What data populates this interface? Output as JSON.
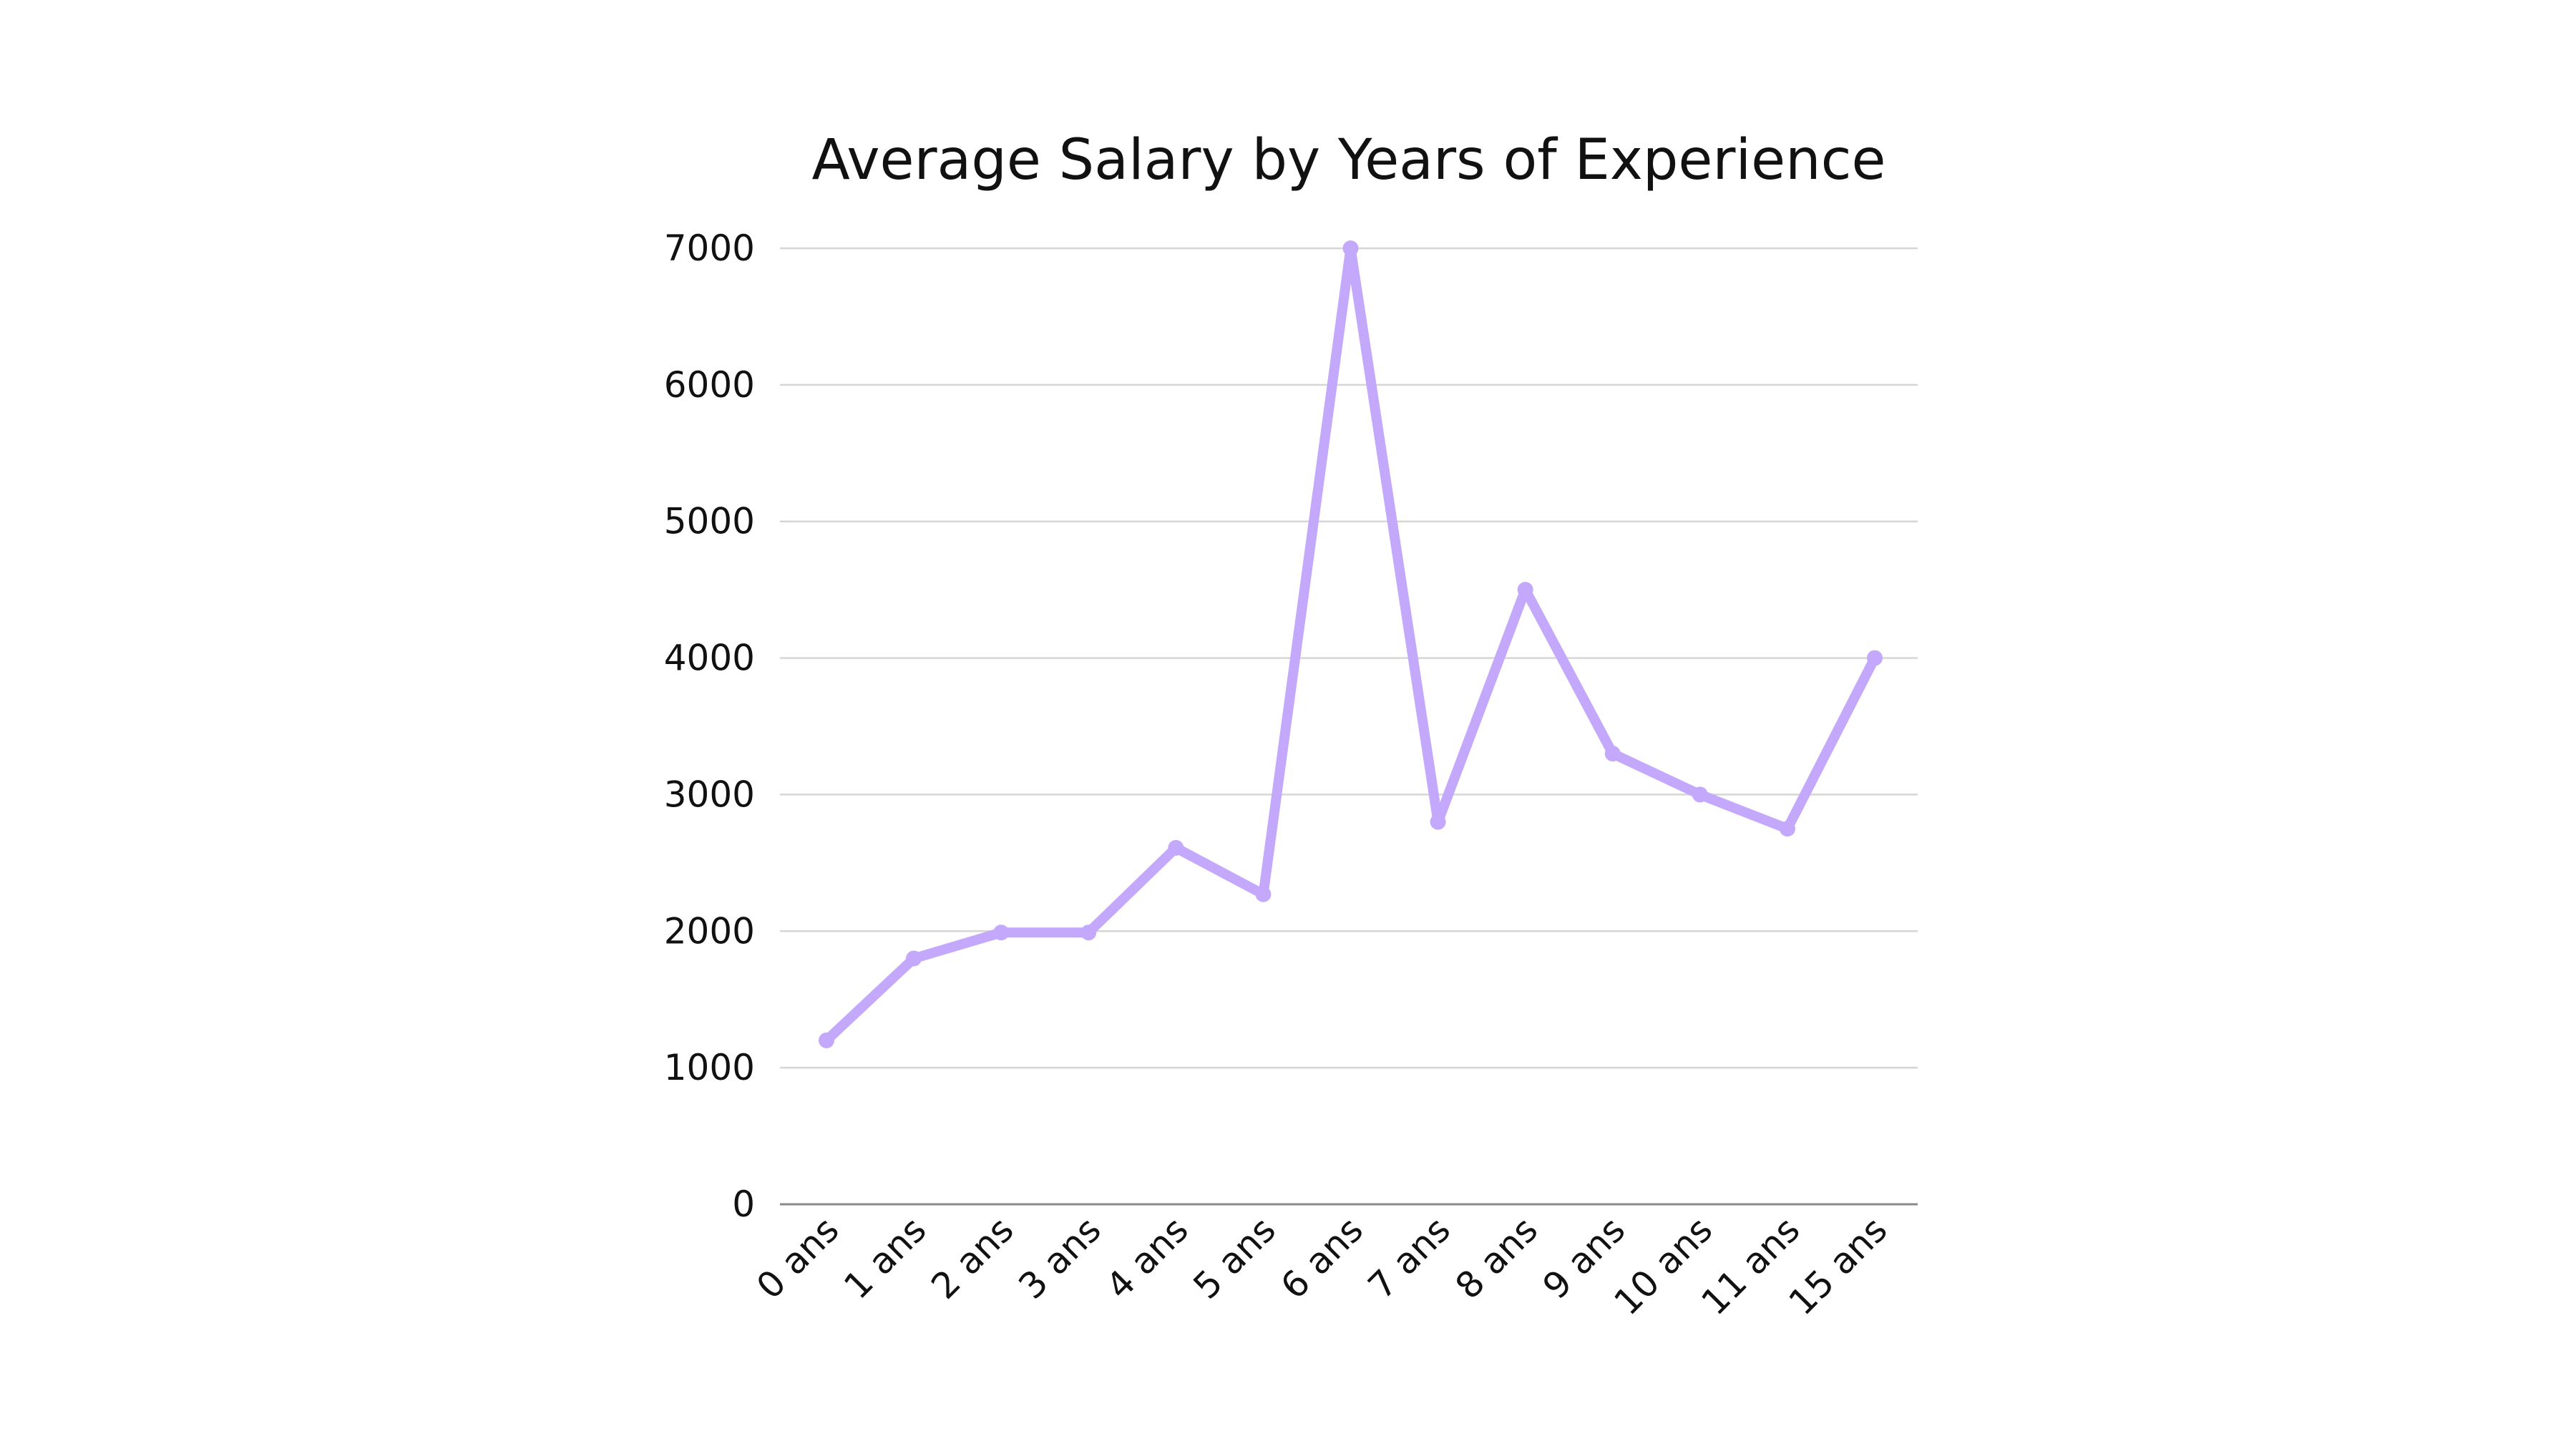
{
  "chart_data": {
    "type": "line",
    "title": "Average Salary by Years of Experience",
    "xlabel": "",
    "ylabel": "",
    "categories": [
      "0 ans",
      "1 ans",
      "2 ans",
      "3 ans",
      "4 ans",
      "5 ans",
      "6 ans",
      "7 ans",
      "8 ans",
      "9 ans",
      "10 ans",
      "11 ans",
      "15 ans"
    ],
    "series": [
      {
        "values": [
          1200,
          1800,
          1990,
          1990,
          2610,
          2270,
          7000,
          2800,
          4500,
          3300,
          3000,
          2750,
          4000
        ],
        "color": "#c4a8fb"
      }
    ],
    "ylim": [
      0,
      7000
    ],
    "yticks": [
      0,
      1000,
      2000,
      3000,
      4000,
      5000,
      6000,
      7000
    ],
    "grid": true,
    "legend": "none",
    "markers": true
  }
}
